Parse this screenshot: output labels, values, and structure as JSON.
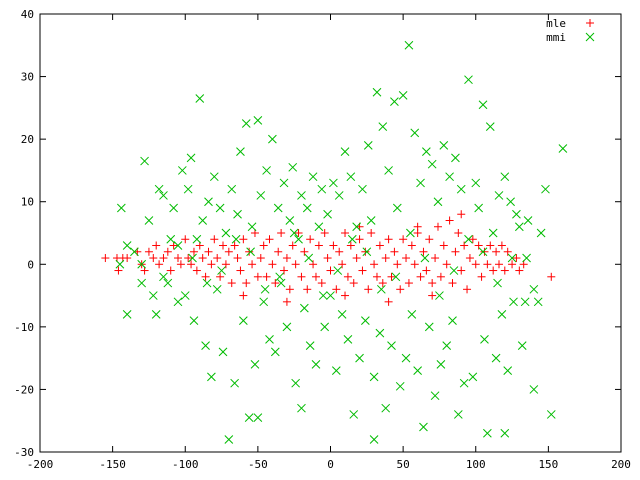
{
  "chart_data": {
    "type": "scatter",
    "title": "",
    "xlabel": "",
    "ylabel": "",
    "xlim": [
      -200,
      200
    ],
    "ylim": [
      -30,
      40
    ],
    "xticks": [
      -200,
      -150,
      -100,
      -50,
      0,
      50,
      100,
      150,
      200
    ],
    "yticks": [
      -30,
      -20,
      -10,
      0,
      10,
      20,
      30,
      40
    ],
    "grid": false,
    "legend_position": "top-right",
    "series": [
      {
        "name": "mle",
        "marker": "plus",
        "color": "#ff0000",
        "points": [
          [
            -155,
            1
          ],
          [
            -147,
            1
          ],
          [
            -146,
            -1
          ],
          [
            -143,
            1
          ],
          [
            -140,
            1
          ],
          [
            -133,
            2
          ],
          [
            -130,
            0
          ],
          [
            -128,
            -1
          ],
          [
            -125,
            2
          ],
          [
            -122,
            1
          ],
          [
            -120,
            3
          ],
          [
            -118,
            0
          ],
          [
            -115,
            1
          ],
          [
            -112,
            2
          ],
          [
            -110,
            -1
          ],
          [
            -108,
            3
          ],
          [
            -105,
            1
          ],
          [
            -103,
            0
          ],
          [
            -100,
            4
          ],
          [
            -98,
            1
          ],
          [
            -96,
            0
          ],
          [
            -94,
            2
          ],
          [
            -92,
            -1
          ],
          [
            -90,
            3
          ],
          [
            -88,
            1
          ],
          [
            -86,
            -2
          ],
          [
            -84,
            2
          ],
          [
            -82,
            0
          ],
          [
            -80,
            4
          ],
          [
            -78,
            1
          ],
          [
            -76,
            -2
          ],
          [
            -74,
            3
          ],
          [
            -72,
            0
          ],
          [
            -70,
            2
          ],
          [
            -68,
            -3
          ],
          [
            -66,
            3
          ],
          [
            -64,
            1
          ],
          [
            -62,
            -1
          ],
          [
            -60,
            4
          ],
          [
            -58,
            -3
          ],
          [
            -56,
            2
          ],
          [
            -54,
            0
          ],
          [
            -52,
            5
          ],
          [
            -50,
            -2
          ],
          [
            -48,
            1
          ],
          [
            -46,
            3
          ],
          [
            -44,
            -2
          ],
          [
            -42,
            4
          ],
          [
            -40,
            0
          ],
          [
            -38,
            -3
          ],
          [
            -36,
            2
          ],
          [
            -34,
            5
          ],
          [
            -32,
            -1
          ],
          [
            -30,
            1
          ],
          [
            -28,
            -4
          ],
          [
            -26,
            3
          ],
          [
            -24,
            0
          ],
          [
            -22,
            5
          ],
          [
            -20,
            -2
          ],
          [
            -18,
            2
          ],
          [
            -16,
            -4
          ],
          [
            -14,
            4
          ],
          [
            -12,
            0
          ],
          [
            -10,
            -2
          ],
          [
            -8,
            3
          ],
          [
            -6,
            -3
          ],
          [
            -4,
            5
          ],
          [
            -2,
            1
          ],
          [
            0,
            -1
          ],
          [
            2,
            3
          ],
          [
            4,
            -4
          ],
          [
            6,
            2
          ],
          [
            8,
            0
          ],
          [
            10,
            5
          ],
          [
            12,
            -2
          ],
          [
            14,
            3
          ],
          [
            16,
            -3
          ],
          [
            18,
            1
          ],
          [
            20,
            4
          ],
          [
            22,
            -1
          ],
          [
            24,
            2
          ],
          [
            26,
            -4
          ],
          [
            28,
            5
          ],
          [
            30,
            0
          ],
          [
            32,
            -2
          ],
          [
            34,
            3
          ],
          [
            36,
            -3
          ],
          [
            38,
            1
          ],
          [
            40,
            4
          ],
          [
            42,
            -2
          ],
          [
            44,
            2
          ],
          [
            46,
            0
          ],
          [
            48,
            -4
          ],
          [
            50,
            4
          ],
          [
            52,
            1
          ],
          [
            54,
            -3
          ],
          [
            56,
            3
          ],
          [
            58,
            0
          ],
          [
            60,
            5
          ],
          [
            62,
            -2
          ],
          [
            64,
            2
          ],
          [
            66,
            -1
          ],
          [
            68,
            4
          ],
          [
            70,
            -3
          ],
          [
            72,
            1
          ],
          [
            74,
            6
          ],
          [
            76,
            -2
          ],
          [
            78,
            3
          ],
          [
            80,
            0
          ],
          [
            82,
            7
          ],
          [
            84,
            -3
          ],
          [
            86,
            2
          ],
          [
            88,
            5
          ],
          [
            90,
            -1
          ],
          [
            92,
            3
          ],
          [
            94,
            -4
          ],
          [
            96,
            1
          ],
          [
            98,
            4
          ],
          [
            100,
            0
          ],
          [
            102,
            3
          ],
          [
            104,
            -2
          ],
          [
            106,
            2
          ],
          [
            108,
            0
          ],
          [
            110,
            3
          ],
          [
            112,
            -1
          ],
          [
            114,
            2
          ],
          [
            116,
            0
          ],
          [
            118,
            3
          ],
          [
            120,
            -1
          ],
          [
            122,
            2
          ],
          [
            125,
            0
          ],
          [
            128,
            1
          ],
          [
            130,
            -1
          ],
          [
            133,
            0
          ],
          [
            152,
            -2
          ],
          [
            -60,
            -5
          ],
          [
            -30,
            -6
          ],
          [
            10,
            -5
          ],
          [
            40,
            -6
          ],
          [
            70,
            -5
          ],
          [
            90,
            8
          ],
          [
            60,
            6
          ],
          [
            20,
            6
          ]
        ]
      },
      {
        "name": "mmi",
        "marker": "cross",
        "color": "#00bb00",
        "points": [
          [
            -144,
            9
          ],
          [
            -140,
            -8
          ],
          [
            -135,
            2
          ],
          [
            -130,
            -3
          ],
          [
            -128,
            16.5
          ],
          [
            -125,
            7
          ],
          [
            -122,
            -5
          ],
          [
            -120,
            -8
          ],
          [
            -118,
            12
          ],
          [
            -115,
            11
          ],
          [
            -112,
            -3
          ],
          [
            -110,
            4
          ],
          [
            -108,
            9
          ],
          [
            -105,
            -6
          ],
          [
            -102,
            15
          ],
          [
            -100,
            -5
          ],
          [
            -98,
            12
          ],
          [
            -96,
            17
          ],
          [
            -94,
            -9
          ],
          [
            -92,
            4
          ],
          [
            -90,
            26.5
          ],
          [
            -88,
            7
          ],
          [
            -86,
            -13
          ],
          [
            -84,
            10
          ],
          [
            -82,
            -18
          ],
          [
            -80,
            14
          ],
          [
            -78,
            -4
          ],
          [
            -76,
            9
          ],
          [
            -74,
            -14
          ],
          [
            -72,
            5
          ],
          [
            -70,
            -28
          ],
          [
            -68,
            12
          ],
          [
            -66,
            -19
          ],
          [
            -64,
            8
          ],
          [
            -62,
            18
          ],
          [
            -60,
            -9
          ],
          [
            -58,
            22.5
          ],
          [
            -56,
            -24.5
          ],
          [
            -54,
            6
          ],
          [
            -52,
            -16
          ],
          [
            -50,
            23
          ],
          [
            -48,
            11
          ],
          [
            -46,
            -6
          ],
          [
            -44,
            15
          ],
          [
            -42,
            -12
          ],
          [
            -40,
            20
          ],
          [
            -38,
            -14
          ],
          [
            -36,
            9
          ],
          [
            -34,
            -3
          ],
          [
            -32,
            13
          ],
          [
            -30,
            -10
          ],
          [
            -28,
            7
          ],
          [
            -26,
            15.5
          ],
          [
            -24,
            -19
          ],
          [
            -22,
            4
          ],
          [
            -20,
            11
          ],
          [
            -18,
            -7
          ],
          [
            -16,
            9
          ],
          [
            -14,
            -13
          ],
          [
            -12,
            14
          ],
          [
            -10,
            -16
          ],
          [
            -8,
            6
          ],
          [
            -6,
            12
          ],
          [
            -4,
            -10
          ],
          [
            -2,
            8
          ],
          [
            0,
            -5
          ],
          [
            2,
            13
          ],
          [
            4,
            -17
          ],
          [
            6,
            11
          ],
          [
            8,
            -8
          ],
          [
            10,
            18
          ],
          [
            12,
            -12
          ],
          [
            14,
            14
          ],
          [
            16,
            -24
          ],
          [
            18,
            6
          ],
          [
            20,
            -15
          ],
          [
            22,
            12
          ],
          [
            24,
            -9
          ],
          [
            26,
            19
          ],
          [
            28,
            7
          ],
          [
            30,
            -18
          ],
          [
            32,
            27.5
          ],
          [
            34,
            -11
          ],
          [
            36,
            22
          ],
          [
            38,
            -23
          ],
          [
            40,
            15
          ],
          [
            42,
            -13
          ],
          [
            44,
            26
          ],
          [
            46,
            9
          ],
          [
            48,
            -19.5
          ],
          [
            50,
            27
          ],
          [
            52,
            -15
          ],
          [
            54,
            35
          ],
          [
            56,
            -8
          ],
          [
            58,
            21
          ],
          [
            60,
            -17
          ],
          [
            62,
            13
          ],
          [
            64,
            -26
          ],
          [
            66,
            18
          ],
          [
            68,
            -10
          ],
          [
            70,
            16
          ],
          [
            72,
            -21
          ],
          [
            74,
            10
          ],
          [
            76,
            -16
          ],
          [
            78,
            19
          ],
          [
            80,
            -13
          ],
          [
            82,
            14
          ],
          [
            84,
            -9
          ],
          [
            86,
            17
          ],
          [
            88,
            -24
          ],
          [
            90,
            12
          ],
          [
            92,
            -19
          ],
          [
            95,
            29.5
          ],
          [
            98,
            -18
          ],
          [
            100,
            13
          ],
          [
            102,
            9
          ],
          [
            105,
            25.5
          ],
          [
            106,
            -12
          ],
          [
            108,
            -27
          ],
          [
            110,
            22
          ],
          [
            112,
            5
          ],
          [
            114,
            -15
          ],
          [
            116,
            11
          ],
          [
            118,
            -8
          ],
          [
            120,
            14
          ],
          [
            122,
            -17
          ],
          [
            124,
            10
          ],
          [
            126,
            -6
          ],
          [
            128,
            8
          ],
          [
            130,
            6
          ],
          [
            132,
            -13
          ],
          [
            134,
            -6
          ],
          [
            136,
            7
          ],
          [
            140,
            -20
          ],
          [
            143,
            -6
          ],
          [
            145,
            5
          ],
          [
            148,
            12
          ],
          [
            152,
            -24
          ],
          [
            160,
            18.5
          ],
          [
            -50,
            -24.5
          ],
          [
            30,
            -28
          ],
          [
            120,
            -27
          ],
          [
            -20,
            -23
          ],
          [
            -140,
            3
          ],
          [
            -130,
            0
          ],
          [
            -115,
            -2
          ],
          [
            -95,
            1
          ],
          [
            -75,
            -1
          ],
          [
            -55,
            2
          ],
          [
            -35,
            -2
          ],
          [
            -15,
            1
          ],
          [
            5,
            -1
          ],
          [
            25,
            2
          ],
          [
            45,
            -2
          ],
          [
            65,
            1
          ],
          [
            85,
            -1
          ],
          [
            105,
            2
          ],
          [
            125,
            1
          ],
          [
            -65,
            4
          ],
          [
            -45,
            -4
          ],
          [
            -25,
            5
          ],
          [
            -5,
            -5
          ],
          [
            15,
            4
          ],
          [
            35,
            -4
          ],
          [
            55,
            5
          ],
          [
            75,
            -5
          ],
          [
            95,
            4
          ],
          [
            115,
            -3
          ],
          [
            -85,
            -3
          ],
          [
            135,
            1
          ],
          [
            -105,
            3
          ],
          [
            140,
            -4
          ],
          [
            -145,
            0
          ]
        ]
      }
    ]
  },
  "legend": {
    "items": [
      {
        "label": "mle",
        "color": "#ff0000",
        "marker": "plus"
      },
      {
        "label": "mmi",
        "color": "#00bb00",
        "marker": "cross"
      }
    ]
  }
}
